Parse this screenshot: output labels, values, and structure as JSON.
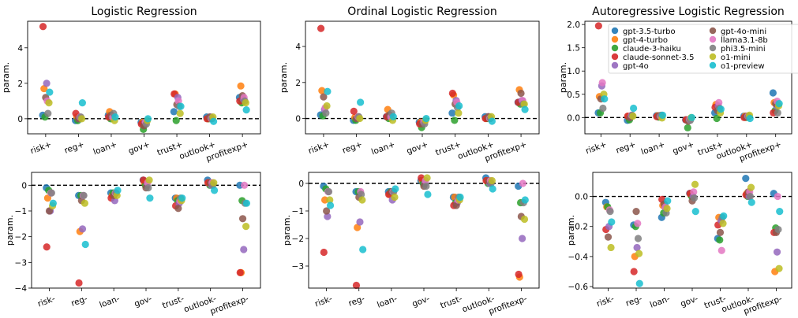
{
  "colors": {
    "gpt-3.5-turbo": "#1f77b4",
    "gpt-4-turbo": "#ff7f0e",
    "claude-3-haiku": "#2ca02c",
    "claude-sonnet-3.5": "#d62728",
    "gpt-4o": "#9467bd",
    "gpt-4o-mini": "#8c564b",
    "llama3.1-8b": "#e377c2",
    "phi3.5-mini": "#7f7f7f",
    "o1-mini": "#bcbd22",
    "o1-preview": "#17becf"
  },
  "legend": {
    "placement": "top-right of third top panel",
    "entries": [
      "gpt-3.5-turbo",
      "gpt-4-turbo",
      "claude-3-haiku",
      "claude-sonnet-3.5",
      "gpt-4o",
      "gpt-4o-mini",
      "llama3.1-8b",
      "phi3.5-mini",
      "o1-mini",
      "o1-preview"
    ]
  },
  "chart_data": [
    {
      "type": "scatter",
      "title": "Logistic Regression",
      "ylabel": "param.",
      "categories": [
        "risk+",
        "reg+",
        "loan+",
        "gov+",
        "trust+",
        "outlook+",
        "profitexp+"
      ],
      "ylim": [
        -0.85,
        5.5
      ],
      "yticks": [
        0,
        2,
        4
      ],
      "zero_line": true,
      "series": [
        {
          "name": "gpt-3.5-turbo",
          "values": [
            0.2,
            -0.1,
            0.2,
            -0.2,
            0.4,
            0.1,
            1.2
          ]
        },
        {
          "name": "gpt-4-turbo",
          "values": [
            1.7,
            0.1,
            0.4,
            -0.2,
            1.4,
            0.0,
            1.85
          ]
        },
        {
          "name": "claude-3-haiku",
          "values": [
            0.1,
            -0.1,
            0.0,
            -0.6,
            -0.1,
            0.0,
            0.9
          ]
        },
        {
          "name": "claude-sonnet-3.5",
          "values": [
            5.2,
            0.3,
            0.1,
            -0.3,
            1.4,
            0.0,
            1.0
          ]
        },
        {
          "name": "gpt-4o",
          "values": [
            2.0,
            0.0,
            0.1,
            -0.2,
            1.2,
            0.1,
            1.1
          ]
        },
        {
          "name": "gpt-4o-mini",
          "values": [
            1.2,
            0.0,
            0.2,
            -0.4,
            0.8,
            0.1,
            1.3
          ]
        },
        {
          "name": "llama3.1-8b",
          "values": [
            1.0,
            0.1,
            0.1,
            -0.2,
            1.0,
            0.0,
            1.2
          ]
        },
        {
          "name": "phi3.5-mini",
          "values": [
            0.3,
            0.1,
            0.3,
            -0.3,
            0.7,
            0.0,
            1.0
          ]
        },
        {
          "name": "o1-mini",
          "values": [
            0.9,
            0.0,
            -0.1,
            -0.1,
            0.3,
            0.1,
            0.9
          ]
        },
        {
          "name": "o1-preview",
          "values": [
            1.5,
            0.9,
            0.1,
            0.0,
            0.7,
            -0.15,
            0.5
          ]
        }
      ]
    },
    {
      "type": "scatter",
      "title": "Ordinal Logistic Regression",
      "ylabel": "param.",
      "categories": [
        "risk+",
        "reg+",
        "loan+",
        "gov+",
        "trust+",
        "outlook+",
        "profitexp+"
      ],
      "ylim": [
        -0.85,
        5.4
      ],
      "yticks": [
        0,
        2,
        4
      ],
      "zero_line": true,
      "series": [
        {
          "name": "gpt-3.5-turbo",
          "values": [
            0.2,
            -0.1,
            0.1,
            -0.2,
            0.3,
            0.1,
            0.9
          ]
        },
        {
          "name": "gpt-4-turbo",
          "values": [
            1.55,
            0.05,
            0.5,
            -0.2,
            1.3,
            0.0,
            1.6
          ]
        },
        {
          "name": "claude-3-haiku",
          "values": [
            0.15,
            -0.1,
            0.0,
            -0.5,
            -0.1,
            0.0,
            0.8
          ]
        },
        {
          "name": "claude-sonnet-3.5",
          "values": [
            5.0,
            0.4,
            0.1,
            -0.3,
            1.4,
            0.0,
            0.9
          ]
        },
        {
          "name": "gpt-4o",
          "values": [
            0.5,
            0.0,
            0.1,
            -0.2,
            1.0,
            0.1,
            1.0
          ]
        },
        {
          "name": "gpt-4o-mini",
          "values": [
            1.2,
            0.0,
            0.2,
            -0.3,
            0.8,
            0.1,
            1.4
          ]
        },
        {
          "name": "llama3.1-8b",
          "values": [
            0.6,
            0.1,
            0.1,
            -0.2,
            0.9,
            0.0,
            1.0
          ]
        },
        {
          "name": "phi3.5-mini",
          "values": [
            0.3,
            0.1,
            0.3,
            -0.3,
            0.6,
            0.0,
            0.8
          ]
        },
        {
          "name": "o1-mini",
          "values": [
            0.7,
            0.0,
            -0.1,
            -0.1,
            0.3,
            0.1,
            0.8
          ]
        },
        {
          "name": "o1-preview",
          "values": [
            1.5,
            0.9,
            0.1,
            0.0,
            0.7,
            -0.15,
            0.5
          ]
        }
      ]
    },
    {
      "type": "scatter",
      "title": "Autoregressive Logistic Regression",
      "ylabel": "param.",
      "categories": [
        "risk+",
        "reg+",
        "loan+",
        "gov+",
        "trust+",
        "outlook+",
        "profitexp+"
      ],
      "ylim": [
        -0.35,
        2.07
      ],
      "yticks": [
        0.0,
        0.5,
        1.0,
        1.5,
        2.0
      ],
      "zero_line": true,
      "series": [
        {
          "name": "gpt-3.5-turbo",
          "values": [
            0.1,
            -0.06,
            0.04,
            -0.05,
            0.1,
            0.03,
            0.53
          ]
        },
        {
          "name": "gpt-4-turbo",
          "values": [
            0.45,
            0.03,
            0.04,
            -0.05,
            0.28,
            0.03,
            0.32
          ]
        },
        {
          "name": "claude-3-haiku",
          "values": [
            0.1,
            -0.05,
            0.01,
            -0.22,
            -0.02,
            0.0,
            0.15
          ]
        },
        {
          "name": "claude-sonnet-3.5",
          "values": [
            1.97,
            0.03,
            0.02,
            -0.05,
            0.22,
            0.0,
            0.1
          ]
        },
        {
          "name": "gpt-4o",
          "values": [
            0.68,
            0.02,
            0.03,
            -0.04,
            0.25,
            0.02,
            0.25
          ]
        },
        {
          "name": "gpt-4o-mini",
          "values": [
            0.4,
            0.0,
            0.04,
            -0.08,
            0.15,
            0.03,
            0.3
          ]
        },
        {
          "name": "llama3.1-8b",
          "values": [
            0.75,
            0.05,
            0.03,
            -0.05,
            0.32,
            0.03,
            0.35
          ]
        },
        {
          "name": "phi3.5-mini",
          "values": [
            0.2,
            0.05,
            0.05,
            -0.06,
            0.2,
            0.02,
            0.1
          ]
        },
        {
          "name": "o1-mini",
          "values": [
            0.5,
            0.03,
            -0.01,
            0.0,
            0.1,
            0.05,
            0.25
          ]
        },
        {
          "name": "o1-preview",
          "values": [
            0.4,
            0.2,
            0.05,
            0.0,
            0.18,
            -0.02,
            0.3
          ]
        }
      ]
    },
    {
      "type": "scatter",
      "ylabel": "param.",
      "categories": [
        "risk-",
        "reg-",
        "loan-",
        "gov-",
        "trust-",
        "outlook-",
        "profitexp-"
      ],
      "ylim": [
        -4.0,
        0.5
      ],
      "yticks": [
        0,
        -1,
        -2,
        -3,
        -4
      ],
      "zero_line": true,
      "series": [
        {
          "name": "gpt-3.5-turbo",
          "values": [
            -0.1,
            -0.4,
            -0.3,
            0.2,
            -0.5,
            0.2,
            0.0
          ]
        },
        {
          "name": "gpt-4-turbo",
          "values": [
            -0.5,
            -1.8,
            -0.4,
            0.1,
            -0.5,
            0.1,
            -3.4
          ]
        },
        {
          "name": "claude-3-haiku",
          "values": [
            -0.2,
            -0.4,
            -0.3,
            0.0,
            -0.6,
            0.0,
            -0.6
          ]
        },
        {
          "name": "claude-sonnet-3.5",
          "values": [
            -2.4,
            -3.8,
            -0.5,
            0.2,
            -0.8,
            0.1,
            -3.4
          ]
        },
        {
          "name": "gpt-4o",
          "values": [
            -1.0,
            -1.7,
            -0.6,
            0.0,
            -0.7,
            0.0,
            -2.5
          ]
        },
        {
          "name": "gpt-4o-mini",
          "values": [
            -1.0,
            -0.6,
            -0.4,
            -0.1,
            -0.9,
            0.1,
            -1.3
          ]
        },
        {
          "name": "llama3.1-8b",
          "values": [
            -0.3,
            -0.4,
            -0.3,
            0.1,
            -0.6,
            0.1,
            0.0
          ]
        },
        {
          "name": "phi3.5-mini",
          "values": [
            -0.3,
            -0.4,
            -0.3,
            -0.1,
            -0.5,
            0.0,
            -0.7
          ]
        },
        {
          "name": "o1-mini",
          "values": [
            -0.8,
            -0.7,
            -0.4,
            0.2,
            -0.6,
            0.1,
            -1.6
          ]
        },
        {
          "name": "o1-preview",
          "values": [
            -0.7,
            -2.3,
            -0.2,
            -0.5,
            -0.5,
            -0.2,
            -0.7
          ]
        }
      ]
    },
    {
      "type": "scatter",
      "ylabel": "param.",
      "categories": [
        "risk-",
        "reg-",
        "loan-",
        "gov-",
        "trust-",
        "outlook-",
        "profitexp-"
      ],
      "ylim": [
        -3.8,
        0.4
      ],
      "yticks": [
        0,
        -1,
        -2,
        -3
      ],
      "zero_line": true,
      "series": [
        {
          "name": "gpt-3.5-turbo",
          "values": [
            -0.1,
            -0.3,
            -0.3,
            0.1,
            -0.5,
            0.2,
            -0.1
          ]
        },
        {
          "name": "gpt-4-turbo",
          "values": [
            -0.6,
            -1.6,
            -0.4,
            0.1,
            -0.5,
            0.1,
            -3.4
          ]
        },
        {
          "name": "claude-3-haiku",
          "values": [
            -0.2,
            -0.3,
            -0.3,
            0.0,
            -0.7,
            0.0,
            -0.7
          ]
        },
        {
          "name": "claude-sonnet-3.5",
          "values": [
            -2.5,
            -3.7,
            -0.4,
            0.2,
            -0.8,
            0.1,
            -3.3
          ]
        },
        {
          "name": "gpt-4o",
          "values": [
            -1.2,
            -1.4,
            -0.6,
            0.0,
            -0.7,
            0.0,
            -2.0
          ]
        },
        {
          "name": "gpt-4o-mini",
          "values": [
            -1.0,
            -0.5,
            -0.3,
            -0.1,
            -0.8,
            0.1,
            -1.2
          ]
        },
        {
          "name": "llama3.1-8b",
          "values": [
            -0.3,
            -0.3,
            -0.3,
            0.1,
            -0.6,
            0.1,
            0.0
          ]
        },
        {
          "name": "phi3.5-mini",
          "values": [
            -0.3,
            -0.4,
            -0.3,
            -0.1,
            -0.5,
            0.0,
            -0.7
          ]
        },
        {
          "name": "o1-mini",
          "values": [
            -0.6,
            -0.6,
            -0.5,
            0.2,
            -0.6,
            0.1,
            -1.3
          ]
        },
        {
          "name": "o1-preview",
          "values": [
            -0.8,
            -2.4,
            -0.2,
            -0.4,
            -0.5,
            -0.2,
            -0.6
          ]
        }
      ]
    },
    {
      "type": "scatter",
      "ylabel": "param.",
      "categories": [
        "risk-",
        "reg-",
        "loan-",
        "gov-",
        "trust-",
        "outlook-",
        "profitexp-"
      ],
      "ylim": [
        -0.61,
        0.16
      ],
      "yticks": [
        0.0,
        -0.2,
        -0.4,
        -0.6
      ],
      "zero_line": true,
      "series": [
        {
          "name": "gpt-3.5-turbo",
          "values": [
            -0.04,
            -0.19,
            -0.14,
            0.02,
            -0.28,
            0.12,
            0.02
          ]
        },
        {
          "name": "gpt-4-turbo",
          "values": [
            -0.07,
            -0.4,
            -0.06,
            0.01,
            -0.14,
            0.02,
            -0.5
          ]
        },
        {
          "name": "claude-3-haiku",
          "values": [
            -0.07,
            -0.2,
            -0.11,
            0.0,
            -0.29,
            0.0,
            -0.21
          ]
        },
        {
          "name": "claude-sonnet-3.5",
          "values": [
            -0.22,
            -0.5,
            -0.02,
            0.02,
            -0.19,
            0.01,
            -0.24
          ]
        },
        {
          "name": "gpt-4o",
          "values": [
            -0.2,
            -0.34,
            -0.07,
            0.0,
            -0.16,
            0.0,
            -0.37
          ]
        },
        {
          "name": "gpt-4o-mini",
          "values": [
            -0.27,
            -0.1,
            -0.05,
            -0.03,
            -0.24,
            0.03,
            -0.24
          ]
        },
        {
          "name": "llama3.1-8b",
          "values": [
            -0.09,
            -0.18,
            -0.07,
            0.03,
            -0.36,
            0.03,
            0.0
          ]
        },
        {
          "name": "phi3.5-mini",
          "values": [
            -0.1,
            -0.28,
            -0.11,
            -0.01,
            -0.14,
            0.0,
            -0.22
          ]
        },
        {
          "name": "o1-mini",
          "values": [
            -0.34,
            -0.38,
            -0.08,
            0.08,
            -0.18,
            0.06,
            -0.48
          ]
        },
        {
          "name": "o1-preview",
          "values": [
            -0.17,
            -0.58,
            -0.03,
            -0.1,
            -0.13,
            -0.04,
            -0.1
          ]
        }
      ]
    }
  ]
}
